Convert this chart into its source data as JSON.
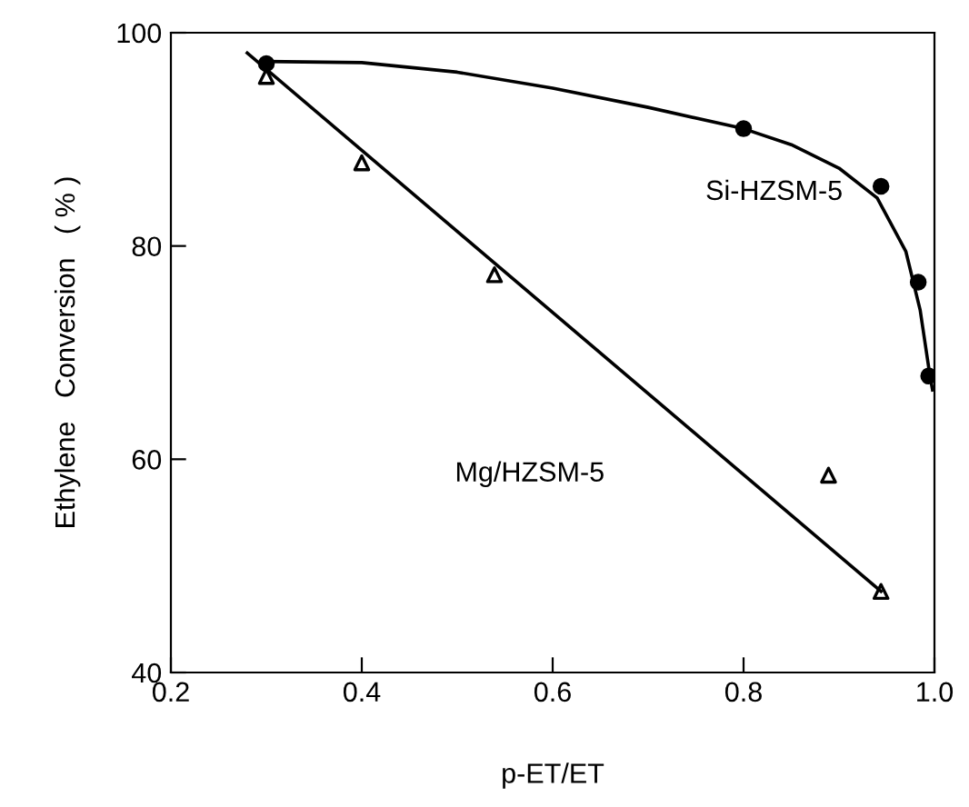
{
  "chart_data": {
    "type": "scatter",
    "xlabel": "p-ET/ET",
    "ylabel": "Ethylene   Conversion   ( % )",
    "xlim": [
      0.2,
      1.0
    ],
    "ylim": [
      40,
      100
    ],
    "xticks": [
      0.2,
      0.4,
      0.6,
      0.8,
      {
        "value": 1.0,
        "label": "1.0"
      }
    ],
    "yticks": [
      40,
      60,
      80,
      100
    ],
    "grid": false,
    "legend": false,
    "series": [
      {
        "type": "line",
        "marker": "none",
        "color": "#000000",
        "x": [
          0.3,
          0.4,
          0.5,
          0.6,
          0.7,
          0.8,
          0.85,
          0.9,
          0.94,
          0.97,
          0.985,
          0.995,
          0.998
        ],
        "values": [
          97.3,
          97.2,
          96.3,
          94.8,
          93.0,
          91.0,
          89.5,
          87.3,
          84.5,
          79.5,
          74,
          68,
          66.5
        ]
      },
      {
        "marker": "circle",
        "color": "#000000",
        "x": [
          0.3,
          0.8,
          0.944,
          0.983,
          0.994
        ],
        "values": [
          97.1,
          91.0,
          85.6,
          76.6,
          67.8
        ]
      },
      {
        "type": "line",
        "marker": "none",
        "color": "#000000",
        "x": [
          0.28,
          0.944
        ],
        "values": [
          98.1,
          47.6
        ]
      },
      {
        "marker": "triangle",
        "color": "#000000",
        "x": [
          0.3,
          0.4,
          0.539,
          0.889,
          0.944
        ],
        "values": [
          95.9,
          87.8,
          77.3,
          58.5,
          47.6
        ]
      }
    ],
    "annotations": [
      "Si-HZSM-5",
      "Mg/HZSM-5"
    ]
  }
}
